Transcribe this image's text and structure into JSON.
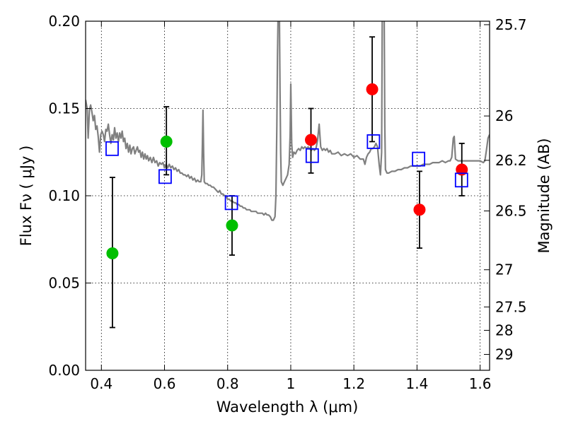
{
  "chart_data": {
    "type": "scatter",
    "xlabel": "Wavelength  λ (μm)",
    "ylabel": "Flux  Fν  ( μJy )",
    "y2label": "Magnitude (AB)",
    "xlim": [
      0.35,
      1.63
    ],
    "ylim": [
      0.0,
      0.2
    ],
    "grid": true,
    "grid_style": "dotted",
    "xticks": [
      {
        "value": 0.4,
        "label": "0.4"
      },
      {
        "value": 0.6,
        "label": "0.6"
      },
      {
        "value": 0.8,
        "label": "0.8"
      },
      {
        "value": 1.0,
        "label": "1"
      },
      {
        "value": 1.2,
        "label": "1.2"
      },
      {
        "value": 1.4,
        "label": "1.4"
      },
      {
        "value": 1.6,
        "label": "1.6"
      }
    ],
    "yticks": [
      {
        "value": 0.0,
        "label": "0.00"
      },
      {
        "value": 0.05,
        "label": "0.05"
      },
      {
        "value": 0.1,
        "label": "0.10"
      },
      {
        "value": 0.15,
        "label": "0.15"
      },
      {
        "value": 0.2,
        "label": "0.20"
      }
    ],
    "y2ticks": [
      {
        "flux": 0.198,
        "label": "25.7"
      },
      {
        "flux": 0.1457,
        "label": "26"
      },
      {
        "flux": 0.1203,
        "label": "26.2"
      },
      {
        "flux": 0.0913,
        "label": "26.5"
      },
      {
        "flux": 0.0576,
        "label": "27"
      },
      {
        "flux": 0.0363,
        "label": "27.5"
      },
      {
        "flux": 0.0229,
        "label": "28"
      },
      {
        "flux": 0.0091,
        "label": "29"
      }
    ],
    "series": [
      {
        "kind": "line",
        "color": "#808080",
        "points": [
          [
            0.35,
            0.155
          ],
          [
            0.355,
            0.15
          ],
          [
            0.358,
            0.133
          ],
          [
            0.362,
            0.149
          ],
          [
            0.366,
            0.152
          ],
          [
            0.37,
            0.148
          ],
          [
            0.374,
            0.143
          ],
          [
            0.378,
            0.146
          ],
          [
            0.382,
            0.138
          ],
          [
            0.386,
            0.14
          ],
          [
            0.39,
            0.134
          ],
          [
            0.394,
            0.125
          ],
          [
            0.398,
            0.135
          ],
          [
            0.402,
            0.137
          ],
          [
            0.406,
            0.135
          ],
          [
            0.41,
            0.131
          ],
          [
            0.414,
            0.138
          ],
          [
            0.418,
            0.137
          ],
          [
            0.422,
            0.141
          ],
          [
            0.426,
            0.135
          ],
          [
            0.43,
            0.13
          ],
          [
            0.434,
            0.135
          ],
          [
            0.438,
            0.132
          ],
          [
            0.442,
            0.139
          ],
          [
            0.446,
            0.133
          ],
          [
            0.45,
            0.136
          ],
          [
            0.454,
            0.131
          ],
          [
            0.458,
            0.136
          ],
          [
            0.462,
            0.133
          ],
          [
            0.466,
            0.137
          ],
          [
            0.47,
            0.131
          ],
          [
            0.474,
            0.133
          ],
          [
            0.478,
            0.127
          ],
          [
            0.482,
            0.13
          ],
          [
            0.486,
            0.125
          ],
          [
            0.49,
            0.129
          ],
          [
            0.494,
            0.124
          ],
          [
            0.498,
            0.127
          ],
          [
            0.502,
            0.128
          ],
          [
            0.506,
            0.124
          ],
          [
            0.51,
            0.126
          ],
          [
            0.514,
            0.128
          ],
          [
            0.518,
            0.125
          ],
          [
            0.522,
            0.126
          ],
          [
            0.526,
            0.122
          ],
          [
            0.53,
            0.125
          ],
          [
            0.534,
            0.121
          ],
          [
            0.538,
            0.124
          ],
          [
            0.542,
            0.121
          ],
          [
            0.546,
            0.123
          ],
          [
            0.55,
            0.12
          ],
          [
            0.555,
            0.122
          ],
          [
            0.56,
            0.119
          ],
          [
            0.565,
            0.122
          ],
          [
            0.57,
            0.119
          ],
          [
            0.575,
            0.12
          ],
          [
            0.58,
            0.117
          ],
          [
            0.585,
            0.119
          ],
          [
            0.59,
            0.118
          ],
          [
            0.595,
            0.119
          ],
          [
            0.6,
            0.116
          ],
          [
            0.605,
            0.118
          ],
          [
            0.61,
            0.116
          ],
          [
            0.615,
            0.118
          ],
          [
            0.62,
            0.116
          ],
          [
            0.625,
            0.117
          ],
          [
            0.63,
            0.115
          ],
          [
            0.635,
            0.116
          ],
          [
            0.64,
            0.114
          ],
          [
            0.645,
            0.115
          ],
          [
            0.65,
            0.113
          ],
          [
            0.655,
            0.113
          ],
          [
            0.66,
            0.112
          ],
          [
            0.665,
            0.112
          ],
          [
            0.67,
            0.111
          ],
          [
            0.675,
            0.112
          ],
          [
            0.68,
            0.11
          ],
          [
            0.685,
            0.111
          ],
          [
            0.69,
            0.109
          ],
          [
            0.695,
            0.11
          ],
          [
            0.7,
            0.108
          ],
          [
            0.705,
            0.109
          ],
          [
            0.71,
            0.108
          ],
          [
            0.715,
            0.108
          ],
          [
            0.718,
            0.112
          ],
          [
            0.72,
            0.13
          ],
          [
            0.722,
            0.149
          ],
          [
            0.724,
            0.125
          ],
          [
            0.726,
            0.108
          ],
          [
            0.73,
            0.107
          ],
          [
            0.735,
            0.107
          ],
          [
            0.74,
            0.106
          ],
          [
            0.745,
            0.106
          ],
          [
            0.75,
            0.105
          ],
          [
            0.755,
            0.105
          ],
          [
            0.76,
            0.104
          ],
          [
            0.765,
            0.103
          ],
          [
            0.77,
            0.102
          ],
          [
            0.775,
            0.103
          ],
          [
            0.78,
            0.101
          ],
          [
            0.785,
            0.101
          ],
          [
            0.79,
            0.1
          ],
          [
            0.795,
            0.1
          ],
          [
            0.8,
            0.098
          ],
          [
            0.805,
            0.098
          ],
          [
            0.81,
            0.097
          ],
          [
            0.815,
            0.097
          ],
          [
            0.82,
            0.096
          ],
          [
            0.825,
            0.096
          ],
          [
            0.83,
            0.095
          ],
          [
            0.835,
            0.095
          ],
          [
            0.84,
            0.094
          ],
          [
            0.845,
            0.094
          ],
          [
            0.85,
            0.093
          ],
          [
            0.855,
            0.093
          ],
          [
            0.86,
            0.092
          ],
          [
            0.865,
            0.092
          ],
          [
            0.87,
            0.092
          ],
          [
            0.875,
            0.091
          ],
          [
            0.88,
            0.091
          ],
          [
            0.885,
            0.091
          ],
          [
            0.89,
            0.091
          ],
          [
            0.895,
            0.09
          ],
          [
            0.9,
            0.09
          ],
          [
            0.905,
            0.09
          ],
          [
            0.91,
            0.09
          ],
          [
            0.915,
            0.089
          ],
          [
            0.92,
            0.09
          ],
          [
            0.925,
            0.089
          ],
          [
            0.93,
            0.089
          ],
          [
            0.935,
            0.088
          ],
          [
            0.94,
            0.086
          ],
          [
            0.945,
            0.086
          ],
          [
            0.95,
            0.088
          ],
          [
            0.953,
            0.1
          ],
          [
            0.956,
            0.14
          ],
          [
            0.958,
            0.18
          ],
          [
            0.96,
            0.205
          ],
          [
            0.964,
            0.205
          ],
          [
            0.966,
            0.16
          ],
          [
            0.968,
            0.125
          ],
          [
            0.97,
            0.108
          ],
          [
            0.975,
            0.106
          ],
          [
            0.98,
            0.108
          ],
          [
            0.985,
            0.11
          ],
          [
            0.99,
            0.112
          ],
          [
            0.995,
            0.118
          ],
          [
            0.998,
            0.135
          ],
          [
            1.0,
            0.164
          ],
          [
            1.003,
            0.13
          ],
          [
            1.006,
            0.122
          ],
          [
            1.01,
            0.125
          ],
          [
            1.015,
            0.124
          ],
          [
            1.02,
            0.126
          ],
          [
            1.025,
            0.127
          ],
          [
            1.03,
            0.126
          ],
          [
            1.035,
            0.128
          ],
          [
            1.04,
            0.127
          ],
          [
            1.045,
            0.128
          ],
          [
            1.05,
            0.127
          ],
          [
            1.055,
            0.128
          ],
          [
            1.06,
            0.127
          ],
          [
            1.065,
            0.126
          ],
          [
            1.07,
            0.127
          ],
          [
            1.075,
            0.126
          ],
          [
            1.08,
            0.127
          ],
          [
            1.085,
            0.132
          ],
          [
            1.09,
            0.141
          ],
          [
            1.095,
            0.128
          ],
          [
            1.1,
            0.126
          ],
          [
            1.105,
            0.127
          ],
          [
            1.11,
            0.126
          ],
          [
            1.115,
            0.127
          ],
          [
            1.12,
            0.125
          ],
          [
            1.125,
            0.126
          ],
          [
            1.13,
            0.124
          ],
          [
            1.14,
            0.124
          ],
          [
            1.15,
            0.125
          ],
          [
            1.16,
            0.123
          ],
          [
            1.17,
            0.124
          ],
          [
            1.18,
            0.123
          ],
          [
            1.19,
            0.124
          ],
          [
            1.2,
            0.122
          ],
          [
            1.21,
            0.123
          ],
          [
            1.22,
            0.121
          ],
          [
            1.23,
            0.121
          ],
          [
            1.235,
            0.118
          ],
          [
            1.24,
            0.122
          ],
          [
            1.245,
            0.124
          ],
          [
            1.25,
            0.125
          ],
          [
            1.255,
            0.127
          ],
          [
            1.26,
            0.127
          ],
          [
            1.265,
            0.128
          ],
          [
            1.27,
            0.13
          ],
          [
            1.275,
            0.128
          ],
          [
            1.28,
            0.118
          ],
          [
            1.284,
            0.112
          ],
          [
            1.288,
            0.125
          ],
          [
            1.29,
            0.205
          ],
          [
            1.296,
            0.205
          ],
          [
            1.298,
            0.14
          ],
          [
            1.3,
            0.115
          ],
          [
            1.305,
            0.113
          ],
          [
            1.31,
            0.113
          ],
          [
            1.32,
            0.114
          ],
          [
            1.33,
            0.114
          ],
          [
            1.34,
            0.115
          ],
          [
            1.35,
            0.115
          ],
          [
            1.36,
            0.116
          ],
          [
            1.37,
            0.116
          ],
          [
            1.38,
            0.117
          ],
          [
            1.39,
            0.117
          ],
          [
            1.4,
            0.117
          ],
          [
            1.41,
            0.117
          ],
          [
            1.42,
            0.118
          ],
          [
            1.43,
            0.118
          ],
          [
            1.44,
            0.118
          ],
          [
            1.45,
            0.119
          ],
          [
            1.46,
            0.119
          ],
          [
            1.47,
            0.119
          ],
          [
            1.48,
            0.12
          ],
          [
            1.49,
            0.119
          ],
          [
            1.5,
            0.12
          ],
          [
            1.505,
            0.12
          ],
          [
            1.51,
            0.122
          ],
          [
            1.515,
            0.133
          ],
          [
            1.518,
            0.134
          ],
          [
            1.522,
            0.121
          ],
          [
            1.53,
            0.12
          ],
          [
            1.54,
            0.12
          ],
          [
            1.55,
            0.12
          ],
          [
            1.56,
            0.12
          ],
          [
            1.57,
            0.12
          ],
          [
            1.58,
            0.12
          ],
          [
            1.59,
            0.12
          ],
          [
            1.6,
            0.12
          ],
          [
            1.61,
            0.119
          ],
          [
            1.615,
            0.12
          ],
          [
            1.62,
            0.126
          ],
          [
            1.625,
            0.133
          ],
          [
            1.63,
            0.135
          ]
        ]
      },
      {
        "kind": "points",
        "marker": "circle",
        "color": "#00bf00",
        "points": [
          {
            "x": 0.435,
            "y": 0.067,
            "yerr": [
              0.0245,
              0.1105
            ]
          },
          {
            "x": 0.606,
            "y": 0.131,
            "yerr": [
              0.112,
              0.151
            ]
          },
          {
            "x": 0.814,
            "y": 0.083,
            "yerr": [
              0.066,
              0.1
            ]
          }
        ]
      },
      {
        "kind": "points",
        "marker": "circle",
        "color": "#ff0000",
        "points": [
          {
            "x": 1.064,
            "y": 0.132,
            "yerr": [
              0.113,
              0.15
            ]
          },
          {
            "x": 1.258,
            "y": 0.161,
            "yerr": [
              0.131,
              0.191
            ]
          },
          {
            "x": 1.408,
            "y": 0.092,
            "yerr": [
              0.07,
              0.114
            ]
          },
          {
            "x": 1.542,
            "y": 0.115,
            "yerr": [
              0.1,
              0.13
            ]
          }
        ]
      },
      {
        "kind": "points",
        "marker": "square",
        "color": "#0000ff",
        "points": [
          {
            "x": 0.434,
            "y": 0.127
          },
          {
            "x": 0.602,
            "y": 0.111
          },
          {
            "x": 0.812,
            "y": 0.096
          },
          {
            "x": 1.068,
            "y": 0.123
          },
          {
            "x": 1.262,
            "y": 0.131
          },
          {
            "x": 1.405,
            "y": 0.121
          },
          {
            "x": 1.541,
            "y": 0.109
          }
        ]
      }
    ]
  }
}
